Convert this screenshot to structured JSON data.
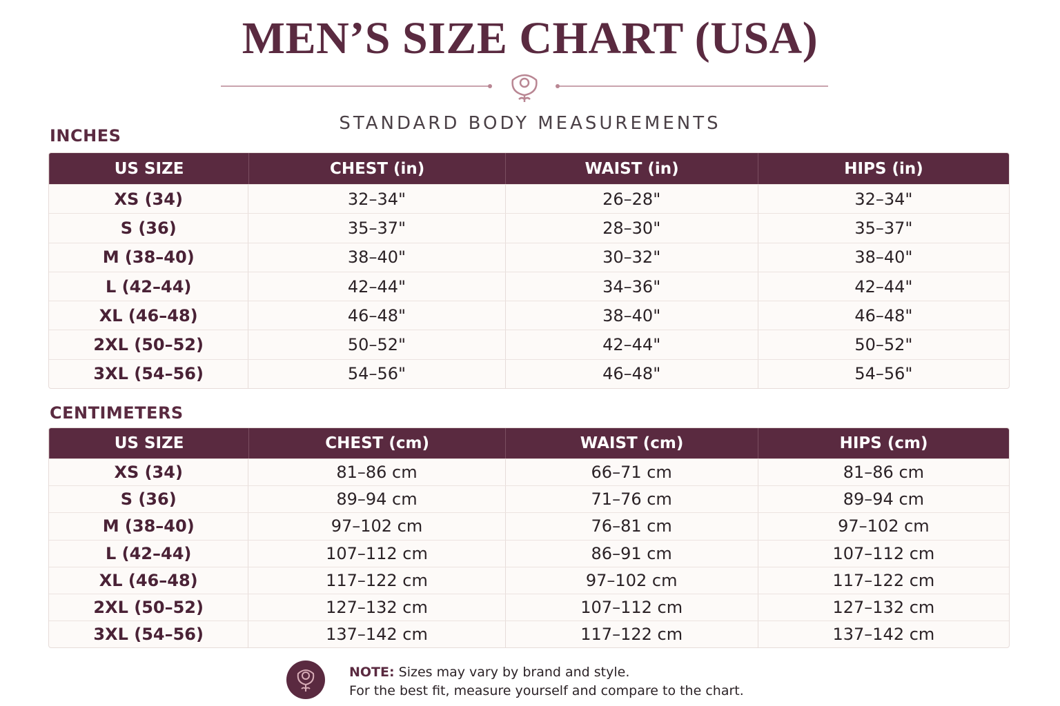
{
  "title": "MEN’S SIZE CHART (USA)",
  "subtitle": "STANDARD BODY MEASUREMENTS",
  "tables": [
    {
      "label": "INCHES",
      "header": [
        "US SIZE",
        "CHEST (in)",
        "WAIST (in)",
        "HIPS (in)"
      ],
      "rows": [
        [
          "XS (34)",
          "32–34\"",
          "26–28\"",
          "32–34\""
        ],
        [
          "S (36)",
          "35–37\"",
          "28–30\"",
          "35–37\""
        ],
        [
          "M (38–40)",
          "38–40\"",
          "30–32\"",
          "38–40\""
        ],
        [
          "L (42–44)",
          "42–44\"",
          "34–36\"",
          "42–44\""
        ],
        [
          "XL (46–48)",
          "46–48\"",
          "38–40\"",
          "46–48\""
        ],
        [
          "2XL (50–52)",
          "50–52\"",
          "42–44\"",
          "50–52\""
        ],
        [
          "3XL (54–56)",
          "54–56\"",
          "46–48\"",
          "54–56\""
        ]
      ]
    },
    {
      "label": "CENTIMETERS",
      "header": [
        "US SIZE",
        "CHEST (cm)",
        "WAIST (cm)",
        "HIPS (cm)"
      ],
      "rows": [
        [
          "XS (34)",
          "81–86 cm",
          "66–71 cm",
          "81–86 cm"
        ],
        [
          "S (36)",
          "89–94 cm",
          "71–76 cm",
          "89–94 cm"
        ],
        [
          "M (38–40)",
          "97–102 cm",
          "76–81 cm",
          "97–102 cm"
        ],
        [
          "L (42–44)",
          "107–112 cm",
          "86–91 cm",
          "107–112 cm"
        ],
        [
          "XL (46–48)",
          "117–122 cm",
          "97–102 cm",
          "117–122 cm"
        ],
        [
          "2XL (50–52)",
          "127–132 cm",
          "107–112 cm",
          "127–132 cm"
        ],
        [
          "3XL (54–56)",
          "137–142 cm",
          "117–122 cm",
          "137–142 cm"
        ]
      ]
    }
  ],
  "note": {
    "label": "NOTE:",
    "lines": [
      "Sizes may vary by brand and style.",
      "For the best fit, measure yourself and compare to the chart."
    ]
  }
}
